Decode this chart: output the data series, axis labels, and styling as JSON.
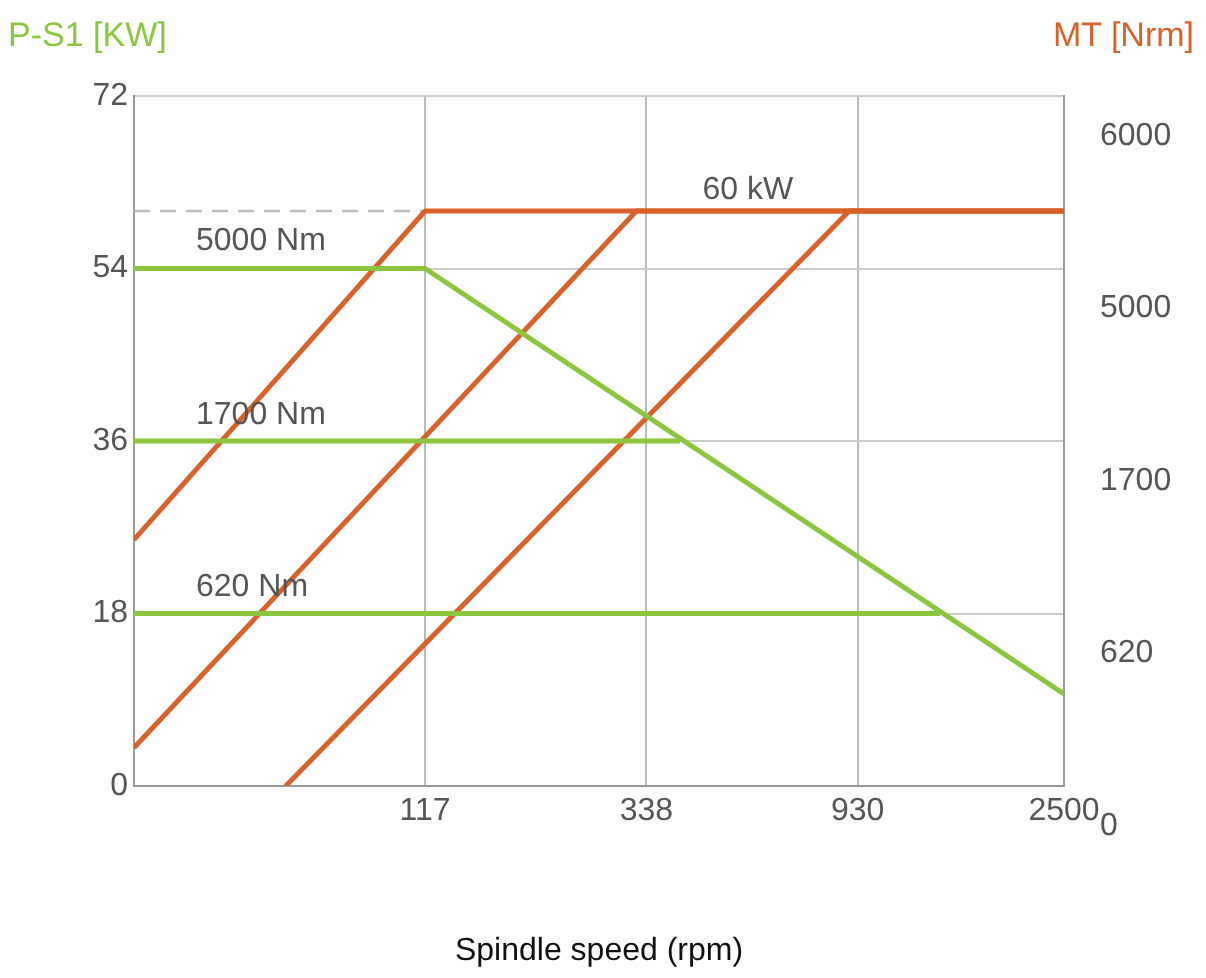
{
  "chart_data": {
    "type": "line",
    "ylabel": "P-S1  [KW]",
    "y2label": "MT   [Nrm]",
    "xlabel": "Spindle speed (rpm)",
    "log": "x",
    "xlim": [
      29,
      2500
    ],
    "xticks": [
      117,
      338,
      930,
      2500
    ],
    "ylim": [
      0,
      72
    ],
    "yticks": [
      0,
      18,
      36,
      54,
      72
    ],
    "y2_categories": [
      "6000",
      "5000",
      "1700",
      "620",
      "0"
    ],
    "grid": true,
    "legend": false,
    "marker": "none",
    "line_style": "solid",
    "series": [
      {
        "color": "#8cc63f",
        "x": [
          29,
          117,
          2500
        ],
        "values": [
          54,
          54,
          9.6
        ]
      },
      {
        "color": "#8cc63f",
        "x": [
          29,
          397
        ],
        "values": [
          36,
          36
        ]
      },
      {
        "color": "#8cc63f",
        "x": [
          29,
          1380
        ],
        "values": [
          18,
          18
        ]
      },
      {
        "color": "#d9622b",
        "x": [
          29,
          117,
          2500
        ],
        "values": [
          25.7,
          60,
          60
        ]
      },
      {
        "color": "#d9622b",
        "x": [
          29,
          322,
          2500
        ],
        "values": [
          4,
          60,
          60
        ]
      },
      {
        "color": "#d9622b",
        "x": [
          60,
          893,
          2500
        ],
        "values": [
          0,
          60,
          60
        ]
      }
    ],
    "ref_lines": [
      {
        "axis": "y",
        "value": 60,
        "color": "#bbbbbb",
        "line_style": "dashed",
        "label": "60 kW"
      }
    ],
    "annotations": [
      {
        "text": "5000 Nm",
        "y": 54
      },
      {
        "text": "1700 Nm",
        "y": 36
      },
      {
        "text": "620 Nm",
        "y": 18
      }
    ]
  }
}
